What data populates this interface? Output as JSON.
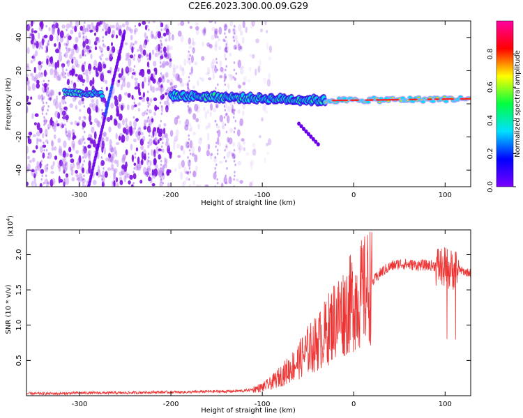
{
  "title": "C2E6.2023.300.00.09.G29",
  "chart_data": [
    {
      "type": "heatmap",
      "description_role": "spectrogram",
      "xlabel": "Height of straight line (km)",
      "ylabel": "Frequency (Hz)",
      "xlim": [
        -358,
        128
      ],
      "ylim": [
        -50,
        50
      ],
      "xticks": [
        -300,
        -200,
        -100,
        0,
        100
      ],
      "xtick_labels": [
        "-300",
        "-200",
        "-100",
        "0",
        "100"
      ],
      "yticks": [
        -40,
        -20,
        0,
        20,
        40
      ],
      "ytick_labels": [
        "-40",
        "-20",
        "0",
        "20",
        "40"
      ],
      "colorbar": {
        "label": "Normalized spectral amplitude",
        "range": [
          0.0,
          1.0
        ],
        "ticks": [
          0.0,
          0.2,
          0.4,
          0.6,
          0.8
        ],
        "tick_labels": [
          "0.0",
          "0.2",
          "0.4",
          "0.6",
          "0.8"
        ],
        "colormap": [
          "#7a00ff",
          "#0000ff",
          "#00e0ff",
          "#00ff40",
          "#ffff00",
          "#ff0000",
          "#ff00a0"
        ]
      },
      "ridge": {
        "segment_1": {
          "x": [
            -316,
            -275
          ],
          "y": [
            7,
            6
          ]
        },
        "segment_2": {
          "x": [
            -200,
            -30
          ],
          "y": [
            5,
            2
          ]
        },
        "segment_3": {
          "x": [
            -30,
            128
          ],
          "y": [
            2,
            3
          ]
        }
      },
      "streak": {
        "x": [
          -290,
          -250
        ],
        "y": [
          -50,
          45
        ]
      },
      "side_branch": {
        "x": [
          -60,
          -38
        ],
        "y": [
          -12,
          -25
        ]
      }
    },
    {
      "type": "line",
      "xlabel": "Height of straight line (km)",
      "ylabel": "SNR (10 * v/v)",
      "y_multiplier_label": "(x10",
      "y_multiplier_exp": "4",
      "xlim": [
        -358,
        128
      ],
      "ylim": [
        0,
        23500
      ],
      "xticks": [
        -300,
        -200,
        -100,
        0,
        100
      ],
      "xtick_labels": [
        "-300",
        "-200",
        "-100",
        "0",
        "100"
      ],
      "yticks": [
        5000,
        10000,
        15000,
        20000
      ],
      "ytick_labels": [
        "0.5",
        "1.0",
        "1.5",
        "2.0"
      ],
      "color": "#ee3333",
      "series": [
        {
          "x": [
            -358,
            -320,
            -300,
            -280,
            -250,
            -220,
            -200,
            -180,
            -160,
            -140,
            -120,
            -110,
            -100,
            -90,
            -80,
            -70,
            -60,
            -50,
            -40,
            -30,
            -20,
            -10,
            0,
            10,
            20,
            30,
            40,
            50,
            60,
            70,
            80,
            90,
            100,
            105,
            110,
            115,
            120,
            128
          ],
          "y": [
            300,
            300,
            400,
            400,
            400,
            500,
            500,
            500,
            600,
            600,
            700,
            900,
            1200,
            1800,
            2800,
            3800,
            5000,
            6500,
            7500,
            9000,
            11000,
            12000,
            13500,
            14500,
            16000,
            17500,
            18300,
            18700,
            18600,
            18500,
            18500,
            18400,
            18200,
            17800,
            18000,
            17900,
            17600,
            17400
          ]
        }
      ]
    }
  ]
}
